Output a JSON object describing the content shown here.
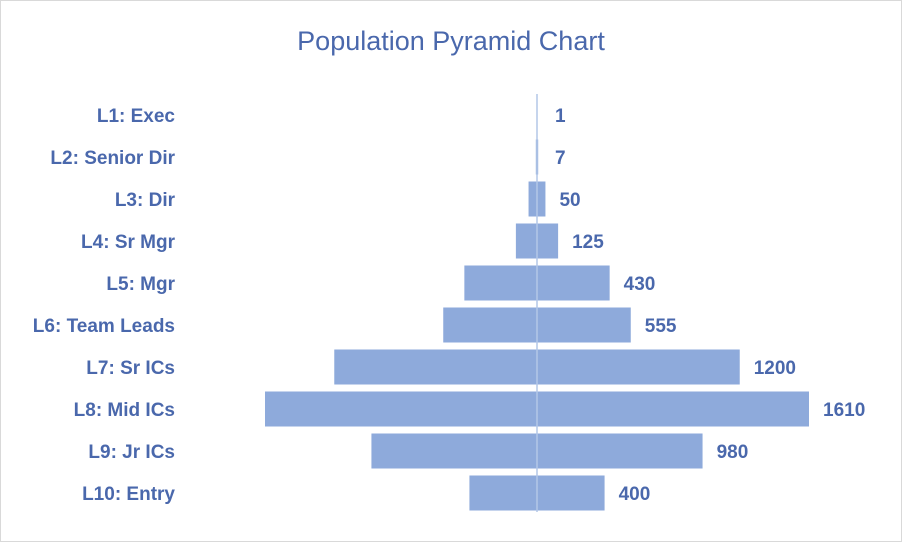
{
  "chart_data": {
    "type": "bar",
    "title": "Population Pyramid Chart",
    "orientation": "horizontal-mirrored",
    "categories": [
      "L1: Exec",
      "L2: Senior Dir",
      "L3: Dir",
      "L4: Sr Mgr",
      "L5: Mgr",
      "L6: Team Leads",
      "L7: Sr ICs",
      "L8: Mid ICs",
      "L9: Jr ICs",
      "L10: Entry"
    ],
    "values": [
      1,
      7,
      50,
      125,
      430,
      555,
      1200,
      1610,
      980,
      400
    ],
    "value_labels": [
      "1",
      "7",
      "50",
      "125",
      "430",
      "555",
      "1200",
      "1610",
      "980",
      "400"
    ],
    "bar_color": "#8eaadb",
    "text_color": "#4a68ac",
    "axis_color": "#b4c7e7",
    "grid": false,
    "legend": "none"
  }
}
